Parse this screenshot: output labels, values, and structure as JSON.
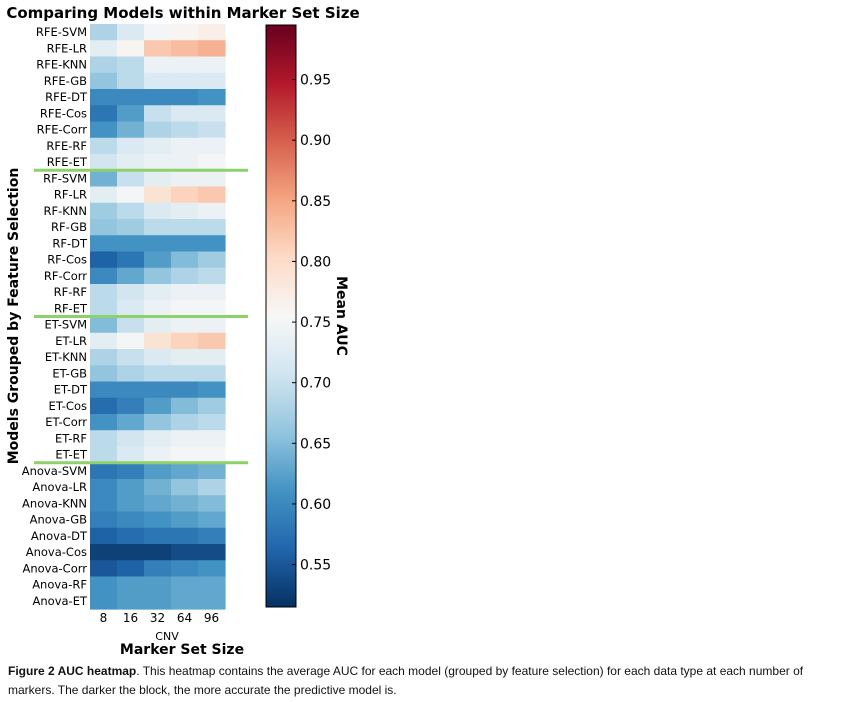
{
  "chart_data": {
    "type": "heatmap",
    "title": "Comparing Models within Marker Set Size",
    "xlabel": "Marker Set Size",
    "ylabel": "Models Grouped by Feature Selection",
    "x_group_label": "CNV",
    "x": [
      "8",
      "16",
      "32",
      "64",
      "96"
    ],
    "rows": [
      "RFE-SVM",
      "RFE-LR",
      "RFE-KNN",
      "RFE-GB",
      "RFE-DT",
      "RFE-Cos",
      "RFE-Corr",
      "RFE-RF",
      "RFE-ET",
      "RF-SVM",
      "RF-LR",
      "RF-KNN",
      "RF-GB",
      "RF-DT",
      "RF-Cos",
      "RF-Corr",
      "RF-RF",
      "RF-ET",
      "ET-SVM",
      "ET-LR",
      "ET-KNN",
      "ET-GB",
      "ET-DT",
      "ET-Cos",
      "ET-Corr",
      "ET-RF",
      "ET-ET",
      "Anova-SVM",
      "Anova-LR",
      "Anova-KNN",
      "Anova-GB",
      "Anova-DT",
      "Anova-Cos",
      "Anova-Corr",
      "Anova-RF",
      "Anova-ET"
    ],
    "values": [
      [
        0.68,
        0.72,
        0.75,
        0.76,
        0.77
      ],
      [
        0.73,
        0.76,
        0.82,
        0.83,
        0.84
      ],
      [
        0.68,
        0.69,
        0.74,
        0.74,
        0.74
      ],
      [
        0.66,
        0.69,
        0.72,
        0.72,
        0.72
      ],
      [
        0.6,
        0.6,
        0.6,
        0.6,
        0.61
      ],
      [
        0.58,
        0.62,
        0.7,
        0.72,
        0.72
      ],
      [
        0.61,
        0.64,
        0.68,
        0.69,
        0.7
      ],
      [
        0.69,
        0.72,
        0.73,
        0.74,
        0.74
      ],
      [
        0.71,
        0.73,
        0.74,
        0.74,
        0.75
      ],
      [
        0.64,
        0.7,
        0.73,
        0.74,
        0.74
      ],
      [
        0.73,
        0.75,
        0.79,
        0.81,
        0.82
      ],
      [
        0.67,
        0.69,
        0.72,
        0.73,
        0.74
      ],
      [
        0.66,
        0.67,
        0.69,
        0.69,
        0.69
      ],
      [
        0.61,
        0.61,
        0.61,
        0.61,
        0.61
      ],
      [
        0.56,
        0.58,
        0.62,
        0.65,
        0.67
      ],
      [
        0.6,
        0.63,
        0.66,
        0.68,
        0.69
      ],
      [
        0.69,
        0.71,
        0.73,
        0.74,
        0.74
      ],
      [
        0.69,
        0.72,
        0.74,
        0.75,
        0.75
      ],
      [
        0.65,
        0.7,
        0.73,
        0.74,
        0.74
      ],
      [
        0.73,
        0.75,
        0.79,
        0.81,
        0.82
      ],
      [
        0.68,
        0.7,
        0.72,
        0.73,
        0.73
      ],
      [
        0.66,
        0.68,
        0.69,
        0.69,
        0.69
      ],
      [
        0.6,
        0.6,
        0.6,
        0.6,
        0.61
      ],
      [
        0.57,
        0.59,
        0.62,
        0.65,
        0.67
      ],
      [
        0.61,
        0.63,
        0.66,
        0.68,
        0.69
      ],
      [
        0.69,
        0.71,
        0.73,
        0.74,
        0.74
      ],
      [
        0.69,
        0.72,
        0.74,
        0.75,
        0.75
      ],
      [
        0.58,
        0.59,
        0.62,
        0.63,
        0.64
      ],
      [
        0.6,
        0.62,
        0.64,
        0.66,
        0.68
      ],
      [
        0.6,
        0.62,
        0.63,
        0.64,
        0.65
      ],
      [
        0.59,
        0.6,
        0.61,
        0.62,
        0.63
      ],
      [
        0.56,
        0.57,
        0.58,
        0.58,
        0.59
      ],
      [
        0.53,
        0.53,
        0.53,
        0.54,
        0.54
      ],
      [
        0.55,
        0.56,
        0.59,
        0.6,
        0.61
      ],
      [
        0.61,
        0.62,
        0.62,
        0.63,
        0.63
      ],
      [
        0.61,
        0.62,
        0.62,
        0.63,
        0.63
      ]
    ],
    "group_separators_after_rows": [
      9,
      18,
      27
    ],
    "separator_color": "#8dd16a",
    "colorbar": {
      "label": "Mean AUC",
      "range": [
        0.515,
        0.995
      ],
      "ticks": [
        "0.55",
        "0.60",
        "0.65",
        "0.70",
        "0.75",
        "0.80",
        "0.85",
        "0.90",
        "0.95"
      ],
      "colormap": "RdBu_r"
    }
  },
  "caption": {
    "label": "Figure 2 AUC heatmap",
    "text": ". This heatmap contains the average AUC for each model (grouped by feature selection) for each data type at each number of markers. The darker the block, the more accurate the predictive model is."
  }
}
